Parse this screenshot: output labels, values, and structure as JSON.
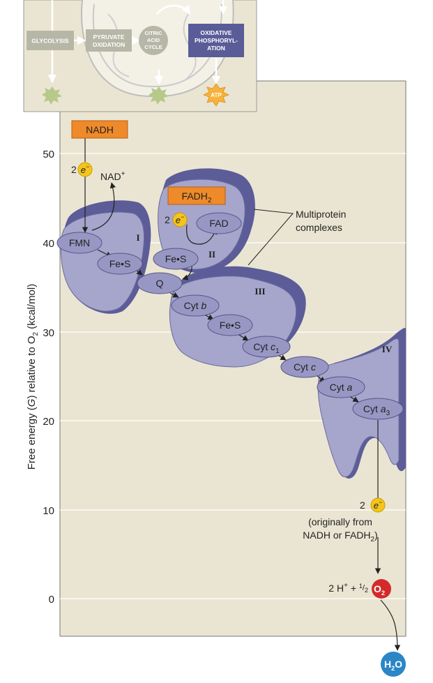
{
  "overview": {
    "glycolysis": "GLYCOLYSIS",
    "pyruvate_1": "PYRUVATE",
    "pyruvate_2": "OXIDATION",
    "citric_1": "CITRIC",
    "citric_2": "ACID",
    "citric_3": "CYCLE",
    "oxphos_1": "OXIDATIVE",
    "oxphos_2": "PHOSPHORYL-",
    "oxphos_3": "ATION",
    "atp": "ATP"
  },
  "axis": {
    "ylabel_1": "Free energy (",
    "ylabel_g": "G",
    "ylabel_2": ") relative to O",
    "ylabel_sub": "2",
    "ylabel_3": " (kcal/mol)",
    "ticks": [
      "50",
      "40",
      "30",
      "20",
      "10",
      "0"
    ]
  },
  "labels": {
    "nadh": "NADH",
    "two_1": "2",
    "e": "e",
    "minus": "−",
    "nad": "NAD",
    "nad_plus": "+",
    "fadh": "FADH",
    "fadh_sub": "2",
    "two_2": "2",
    "fad": "FAD",
    "fmn": "FMN",
    "fes1": "Fe•S",
    "fes2": "Fe•S",
    "fes3": "Fe•S",
    "q": "Q",
    "cytb_1": "Cyt ",
    "cytb_2": "b",
    "cytc1_1": "Cyt ",
    "cytc1_2": "c",
    "cytc1_sub": "1",
    "cytc_1": "Cyt ",
    "cytc_2": "c",
    "cyta_1": "Cyt ",
    "cyta_2": "a",
    "cyta3_1": "Cyt ",
    "cyta3_2": "a",
    "cyta3_sub": "3",
    "roman_1": "I",
    "roman_2": "II",
    "roman_3": "III",
    "roman_4": "IV",
    "multi_1": "Multiprotein",
    "multi_2": "complexes",
    "two_3": "2",
    "orig_1": "(originally from",
    "orig_2": "NADH or FADH",
    "orig_sub": "2",
    "orig_end": ")",
    "h_eq_1": "2 H",
    "h_eq_plus": "+",
    "h_eq_2": " + ",
    "half_num": "1",
    "half_slash": "/",
    "half_den": "2",
    "o": "O",
    "o_sub": "2",
    "h": "H",
    "h_sub": "2",
    "h_o": "O"
  },
  "colors": {
    "panel": "#eae5d2",
    "protein_light": "#a6a5cb",
    "protein_dark": "#5c5c98",
    "carrier": "#9897c4",
    "orange": "#ef8a2a",
    "electron": "#f5c51d",
    "o2": "#d42a2a",
    "h2o": "#2a86c6",
    "oxphos": "#5a5c98"
  }
}
